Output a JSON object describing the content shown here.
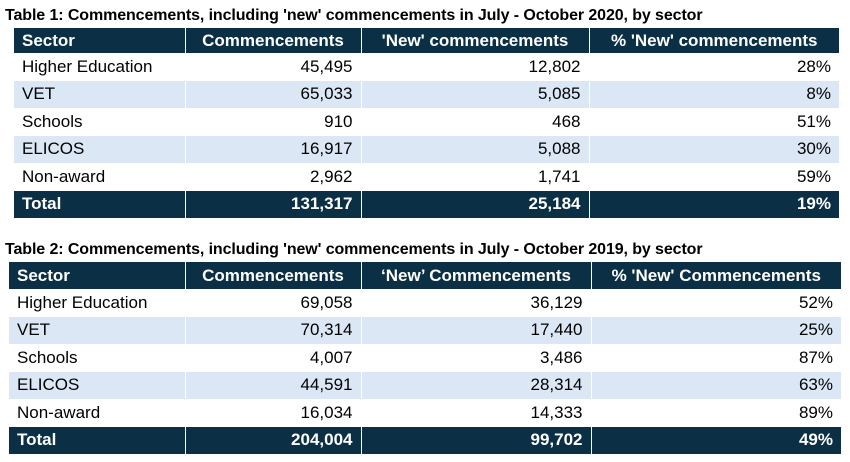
{
  "table1": {
    "caption": "Table 1: Commencements, including 'new' commencements in July - October 2020, by sector",
    "headers": [
      "Sector",
      "Commencements",
      "'New' commencements",
      "% 'New' commencements"
    ],
    "rows": [
      [
        "Higher Education",
        "45,495",
        "12,802",
        "28%"
      ],
      [
        "VET",
        "65,033",
        "5,085",
        "8%"
      ],
      [
        "Schools",
        "910",
        "468",
        "51%"
      ],
      [
        "ELICOS",
        "16,917",
        "5,088",
        "30%"
      ],
      [
        "Non-award",
        "2,962",
        "1,741",
        "59%"
      ]
    ],
    "total": [
      "Total",
      "131,317",
      "25,184",
      "19%"
    ]
  },
  "table2": {
    "caption": "Table 2: Commencements, including 'new' commencements in July - October 2019, by sector",
    "headers": [
      "Sector",
      "Commencements",
      "‘New’ Commencements",
      "% 'New' Commencements"
    ],
    "rows": [
      [
        "Higher Education",
        "69,058",
        "36,129",
        "52%"
      ],
      [
        "VET",
        "70,314",
        "17,440",
        "25%"
      ],
      [
        "Schools",
        "4,007",
        "3,486",
        "87%"
      ],
      [
        "ELICOS",
        "44,591",
        "28,314",
        "63%"
      ],
      [
        "Non-award",
        "16,034",
        "14,333",
        "89%"
      ]
    ],
    "total": [
      "Total",
      "204,004",
      "99,702",
      "49%"
    ]
  },
  "colors": {
    "header_bg": "#0b2f45",
    "alt_row_bg": "#dbe7f5"
  }
}
